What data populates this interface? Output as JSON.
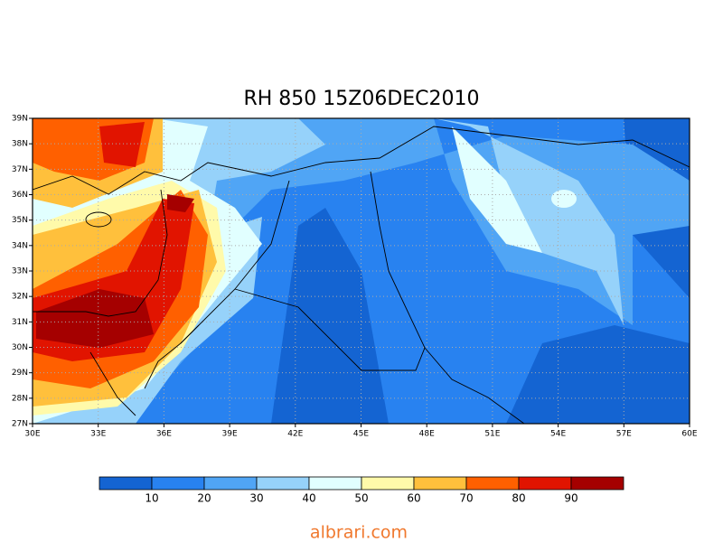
{
  "title": "RH 850  15Z06DEC2010",
  "map": {
    "xlim": [
      30,
      60
    ],
    "ylim": [
      27,
      39
    ],
    "grid": true,
    "xticks": [
      {
        "value": 30,
        "label": "30E"
      },
      {
        "value": 33,
        "label": "33E"
      },
      {
        "value": 36,
        "label": "36E"
      },
      {
        "value": 39,
        "label": "39E"
      },
      {
        "value": 42,
        "label": "42E"
      },
      {
        "value": 45,
        "label": "45E"
      },
      {
        "value": 48,
        "label": "48E"
      },
      {
        "value": 51,
        "label": "51E"
      },
      {
        "value": 54,
        "label": "54E"
      },
      {
        "value": 57,
        "label": "57E"
      },
      {
        "value": 60,
        "label": "60E"
      }
    ],
    "yticks": [
      {
        "value": 27,
        "label": "27N"
      },
      {
        "value": 28,
        "label": "28N"
      },
      {
        "value": 29,
        "label": "29N"
      },
      {
        "value": 30,
        "label": "30N"
      },
      {
        "value": 31,
        "label": "31N"
      },
      {
        "value": 32,
        "label": "32N"
      },
      {
        "value": 33,
        "label": "33N"
      },
      {
        "value": 34,
        "label": "34N"
      },
      {
        "value": 35,
        "label": "35N"
      },
      {
        "value": 36,
        "label": "36N"
      },
      {
        "value": 37,
        "label": "37N"
      },
      {
        "value": 38,
        "label": "38N"
      },
      {
        "value": 39,
        "label": "39N"
      }
    ]
  },
  "colorbar": {
    "colors": [
      "#1464d2",
      "#2882f0",
      "#50a5f5",
      "#96d2fa",
      "#e1ffff",
      "#fffaaa",
      "#ffc03c",
      "#ff6000",
      "#e11400",
      "#a50000"
    ],
    "labels": [
      10,
      20,
      30,
      40,
      50,
      60,
      70,
      80,
      90
    ]
  },
  "watermark": "albrari.com"
}
